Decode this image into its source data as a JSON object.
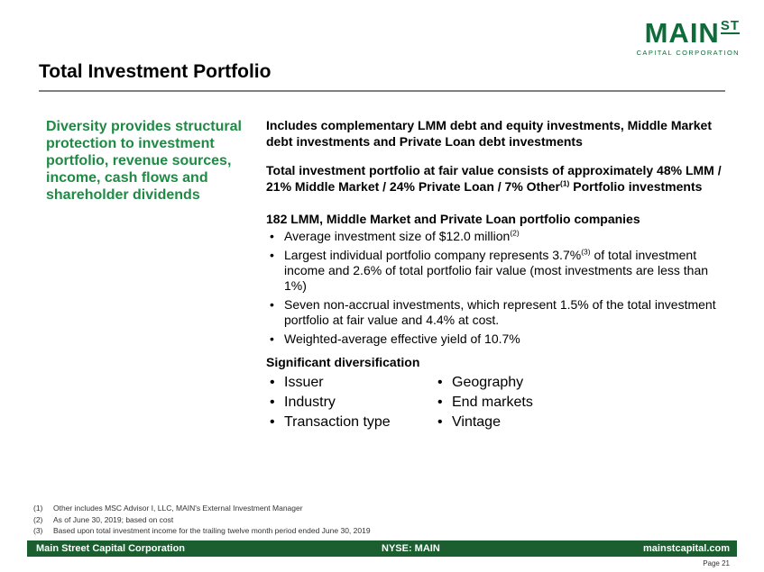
{
  "logo": {
    "main": "MAIN",
    "st": "ST",
    "sub": "CAPITAL CORPORATION"
  },
  "title": "Total Investment Portfolio",
  "left_heading": "Diversity provides structural protection to investment portfolio, revenue sources, income, cash flows and shareholder dividends",
  "para1": "Includes complementary LMM debt and equity investments, Middle Market debt investments and Private Loan debt investments",
  "para2": {
    "text": "Total investment portfolio at fair value consists of approximately 48% LMM / 21% Middle Market / 24% Private Loan / 7% Other",
    "sup": "(1)",
    "tail": " Portfolio investments"
  },
  "para3": "182 LMM, Middle Market and Private Loan portfolio companies",
  "bullets": {
    "b1": "Average investment size of $12.0 million",
    "b1_sup": "(2)",
    "b2a": "Largest individual portfolio company represents 3.7%",
    "b2_sup": "(3)",
    "b2b": " of total investment income and 2.6% of total portfolio fair value (most investments are less than 1%)",
    "b3": "Seven non-accrual investments, which represent 1.5% of the total investment portfolio at fair value and 4.4% at cost.",
    "b4": "Weighted-average effective yield of 10.7%"
  },
  "diversification": {
    "heading": "Significant diversification",
    "col1": [
      "Issuer",
      "Industry",
      "Transaction type"
    ],
    "col2": [
      "Geography",
      "End markets",
      "Vintage"
    ]
  },
  "footnotes": [
    {
      "n": "(1)",
      "text": "Other includes MSC Advisor I, LLC, MAIN's External Investment Manager"
    },
    {
      "n": "(2)",
      "text": "As of June 30, 2019; based on cost"
    },
    {
      "n": "(3)",
      "text": "Based upon total investment income for the trailing twelve month period ended June 30, 2019"
    }
  ],
  "footer": {
    "left": "Main Street Capital Corporation",
    "mid": "NYSE: MAIN",
    "right": "mainstcapital.com"
  },
  "page": "Page 21",
  "colors": {
    "brand_green": "#0f6b3a",
    "heading_green": "#1e8a44",
    "footer_green": "#1b5e30"
  }
}
